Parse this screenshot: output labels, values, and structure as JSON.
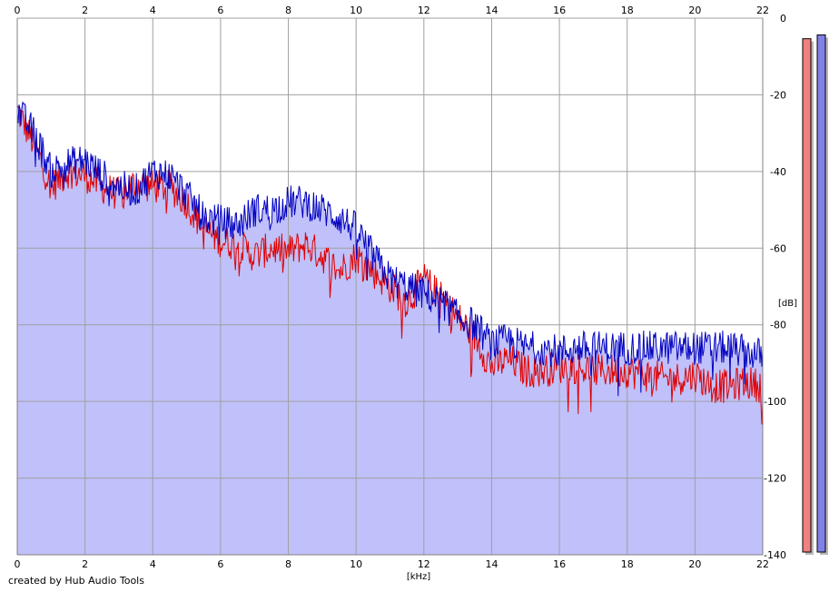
{
  "footer": {
    "credit": "created by Hub Audio Tools"
  },
  "colors": {
    "fill": "#c0c0fa",
    "ch1_line": "#e00000",
    "ch2_line": "#0000c0",
    "grid": "#a0a0a0",
    "ch1_meter": "#f08080",
    "ch2_meter": "#8080e8"
  },
  "chart_data": {
    "type": "line",
    "title": "",
    "xlabel": "[kHz]",
    "ylabel": "[dB]",
    "xlim": [
      0,
      22
    ],
    "ylim": [
      -140,
      0
    ],
    "x_ticks": [
      0,
      2,
      4,
      6,
      8,
      10,
      12,
      14,
      16,
      18,
      20,
      22
    ],
    "y_ticks": [
      0,
      -20,
      -40,
      -60,
      -80,
      -100,
      -120,
      -140
    ],
    "grid": true,
    "legend": "none",
    "series": [
      {
        "color": "red",
        "x": [
          0,
          0.5,
          1,
          1.5,
          2,
          2.5,
          3,
          3.5,
          4,
          4.5,
          5,
          5.5,
          6,
          6.5,
          7,
          7.5,
          8,
          8.5,
          9,
          9.5,
          10,
          10.5,
          11,
          11.5,
          12,
          12.5,
          13,
          13.5,
          14,
          14.5,
          15,
          15.5,
          16,
          16.5,
          17,
          17.5,
          18,
          18.5,
          19,
          19.5,
          20,
          20.5,
          21,
          21.5,
          22
        ],
        "y": [
          -24,
          -33,
          -44,
          -40,
          -41,
          -44,
          -46,
          -43,
          -44,
          -44,
          -48,
          -55,
          -58,
          -59,
          -62,
          -60,
          -61,
          -59,
          -62,
          -66,
          -62,
          -66,
          -70,
          -74,
          -68,
          -73,
          -78,
          -83,
          -91,
          -89,
          -92,
          -92,
          -91,
          -91,
          -92,
          -92,
          -92,
          -93,
          -94,
          -94,
          -93,
          -96,
          -96,
          -95,
          -96
        ]
      },
      {
        "color": "blue",
        "x": [
          0,
          0.5,
          1,
          1.5,
          2,
          2.5,
          3,
          3.5,
          4,
          4.5,
          5,
          5.5,
          6,
          6.5,
          7,
          7.5,
          8,
          8.5,
          9,
          9.5,
          10,
          10.5,
          11,
          11.5,
          12,
          12.5,
          13,
          13.5,
          14,
          14.5,
          15,
          15.5,
          16,
          16.5,
          17,
          17.5,
          18,
          18.5,
          19,
          19.5,
          20,
          20.5,
          21,
          21.5,
          22
        ],
        "y": [
          -24,
          -30,
          -40,
          -38,
          -37,
          -41,
          -44,
          -45,
          -40,
          -41,
          -46,
          -52,
          -53,
          -54,
          -50,
          -50,
          -48,
          -48,
          -50,
          -52,
          -55,
          -62,
          -68,
          -70,
          -72,
          -74,
          -78,
          -80,
          -85,
          -84,
          -86,
          -86,
          -87,
          -86,
          -86,
          -86,
          -86,
          -86,
          -86,
          -86,
          -86,
          -86,
          -86,
          -87,
          -88
        ]
      }
    ],
    "level_meters": [
      {
        "color": "red",
        "level_db": -3
      },
      {
        "color": "blue",
        "level_db": -2
      }
    ]
  }
}
